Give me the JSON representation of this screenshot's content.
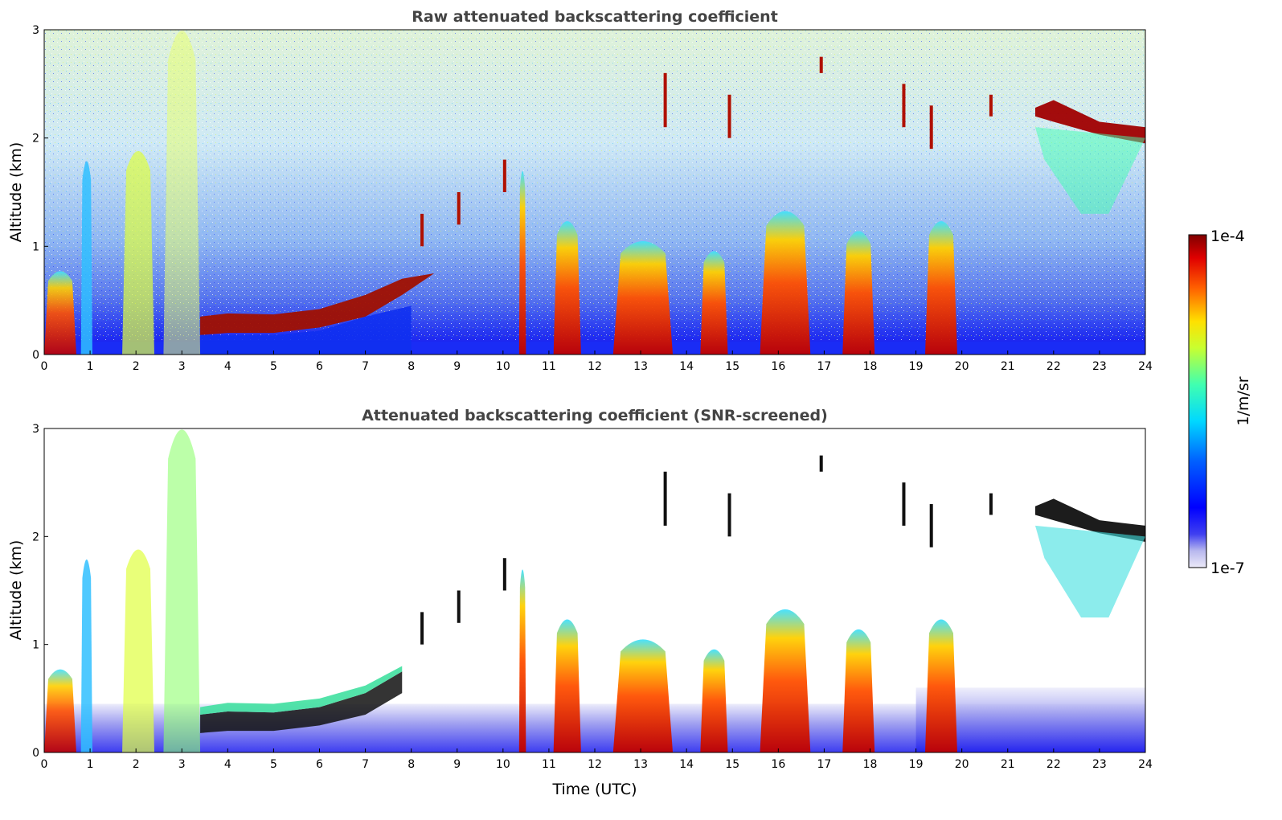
{
  "chart_data": [
    {
      "type": "heatmap",
      "title": "Raw attenuated backscattering coefficient",
      "xlabel": "",
      "ylabel": "Altitude (km)",
      "xlim": [
        0,
        24
      ],
      "ylim": [
        0,
        3
      ],
      "xticks": [
        "0",
        "1",
        "2",
        "3",
        "4",
        "5",
        "6",
        "7",
        "8",
        "9",
        "10",
        "11",
        "12",
        "13",
        "14",
        "15",
        "16",
        "17",
        "18",
        "19",
        "20",
        "21",
        "22",
        "23",
        "24"
      ],
      "yticks": [
        "0",
        "1",
        "2",
        "3"
      ],
      "features": [
        {
          "kind": "boundary_layer",
          "t_start": 3.4,
          "t_end": 7.9,
          "base_km": 0.25,
          "top_km": 0.65
        },
        {
          "kind": "cloud_layer",
          "t_start": 21.6,
          "t_end": 24,
          "altitude_km": 2.15
        },
        {
          "kind": "convective_plume",
          "t_start": 12.4,
          "t_end": 13.7,
          "top_km": 1.1
        },
        {
          "kind": "convective_plume",
          "t_start": 15.6,
          "t_end": 16.7,
          "top_km": 1.4
        }
      ]
    },
    {
      "type": "heatmap",
      "title": "Attenuated backscattering coefficient (SNR-screened)",
      "xlabel": "Time (UTC)",
      "ylabel": "Altitude (km)",
      "xlim": [
        0,
        24
      ],
      "ylim": [
        0,
        3
      ],
      "xticks": [
        "0",
        "1",
        "2",
        "3",
        "4",
        "5",
        "6",
        "7",
        "8",
        "9",
        "10",
        "11",
        "12",
        "13",
        "14",
        "15",
        "16",
        "17",
        "18",
        "19",
        "20",
        "21",
        "22",
        "23",
        "24"
      ],
      "yticks": [
        "0",
        "1",
        "2",
        "3"
      ]
    }
  ],
  "colorbar": {
    "max_label": "1e-4",
    "min_label": "1e-7",
    "label": "1/m/sr",
    "scale": "log",
    "colormap": "jet"
  }
}
